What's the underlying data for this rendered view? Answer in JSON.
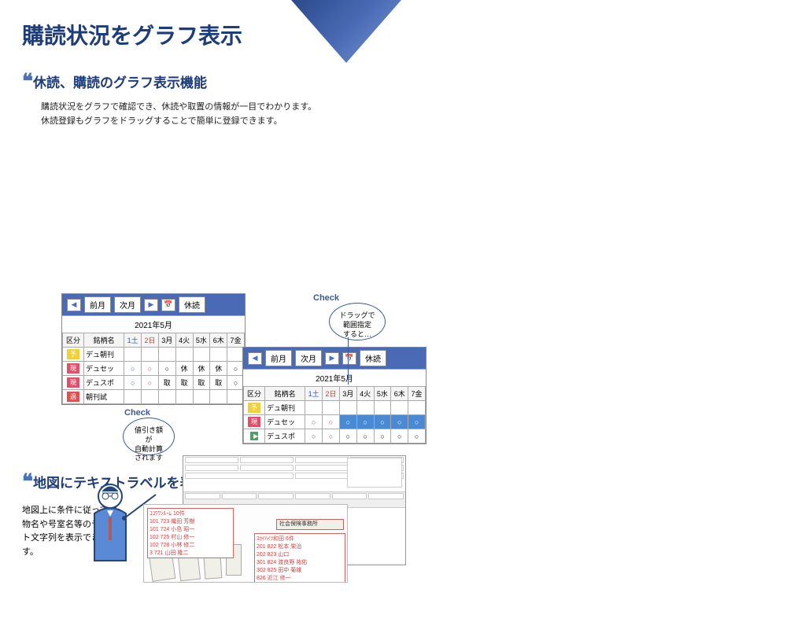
{
  "page_title": "購読状況をグラフ表示",
  "section1": {
    "title": "休読、購読のグラフ表示機能",
    "desc_line1": "購読状況をグラフで確認でき、休読や取置の情報が一目でわかります。",
    "desc_line2": "休読登録もグラフをドラッグすることで簡単に登録できます。"
  },
  "toolbar": {
    "prev": "前月",
    "next": "次月",
    "suspend": "休読"
  },
  "month_label": "2021年5月",
  "cal_header": [
    "区分",
    "銘柄名",
    "1土",
    "2日",
    "3月",
    "4火",
    "5水",
    "6木",
    "7金"
  ],
  "left_rows": [
    {
      "badge": "予",
      "cls": "b-yo",
      "name": "デュ朝刊",
      "cells": [
        "",
        "",
        "",
        "",
        "",
        "",
        ""
      ]
    },
    {
      "badge": "現",
      "cls": "b-gen",
      "name": "デュセッ",
      "cells": [
        "○",
        "○",
        "○",
        "休",
        "休",
        "休",
        "○"
      ]
    },
    {
      "badge": "現",
      "cls": "b-gen",
      "name": "デュスポ",
      "cells": [
        "○",
        "○",
        "取",
        "取",
        "取",
        "取",
        "○"
      ]
    },
    {
      "badge": "過",
      "cls": "b-ka",
      "name": "朝刊試",
      "cells": [
        "",
        "",
        "",
        "",
        "",
        "",
        ""
      ]
    }
  ],
  "right_rows": [
    {
      "badge": "予",
      "cls": "b-yo",
      "name": "デュ朝刊",
      "cells": [
        "",
        "",
        "",
        "",
        "",
        "",
        ""
      ]
    },
    {
      "badge": "現",
      "cls": "b-gen",
      "name": "デュセッ",
      "cells": [
        "○",
        "○",
        "○",
        "○",
        "○",
        "○",
        "○"
      ],
      "sel": [
        2,
        3,
        4,
        5,
        6
      ]
    },
    {
      "badge": "▶",
      "cls": "b-ar",
      "name": "デュスポ",
      "cells": [
        "○",
        "○",
        "○",
        "○",
        "○",
        "○",
        "○"
      ]
    }
  ],
  "check_label": "Check",
  "bubble1_l1": "ドラッグで",
  "bubble1_l2": "範囲指定",
  "bubble1_l3": "すると…",
  "bubble2_l1": "値引き額が",
  "bubble2_l2": "自動計算",
  "bubble2_l3": "されます",
  "section2": {
    "title": "地図にテキストラベルを表示",
    "desc": "地図上に条件に従って建物名や号室名等のテキスト文字列を表示できます。"
  },
  "map": {
    "bld1_name": "ｺｺﾜﾜﾝﾙｰﾑ  10件",
    "bld1_r": [
      "101 723 織田 芳樹",
      "101 724 小島 昭一",
      "102 725 村山 修一",
      "102 728 小林 修二",
      "3     721 山田 隆二"
    ],
    "bld2_name": "社会保険事務所",
    "bld3_name": "ｽｶｲﾊｲﾂ和田 6件",
    "bld3_r": [
      "201 822 松本 栄治",
      "202 823 山口",
      "301 824 渡良野 祐佑",
      "302 825 田中 菊雄",
      "    826 近江 修一"
    ]
  }
}
